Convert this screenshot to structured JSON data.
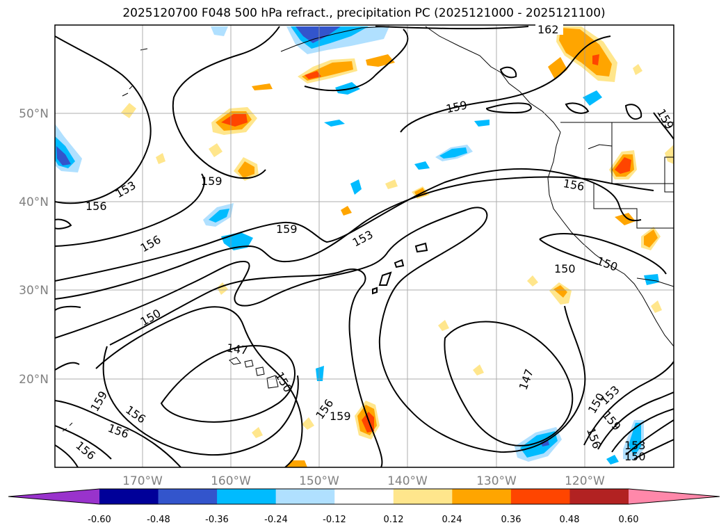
{
  "title": "2025120700 F048 500 hPa refract., precipitation PC (2025121000 - 2025121100)",
  "lat_labels": [
    "50°N",
    "40°N",
    "30°N",
    "20°N"
  ],
  "lon_labels": [
    "170°W",
    "160°W",
    "150°W",
    "140°W",
    "130°W",
    "120°W"
  ],
  "contour_labels": [
    {
      "text": "162"
    },
    {
      "text": "159"
    },
    {
      "text": "159"
    },
    {
      "text": "153"
    },
    {
      "text": "156"
    },
    {
      "text": "159"
    },
    {
      "text": "156"
    },
    {
      "text": "159"
    },
    {
      "text": "153"
    },
    {
      "text": "156"
    },
    {
      "text": "150"
    },
    {
      "text": "150"
    },
    {
      "text": "150"
    },
    {
      "text": "147"
    },
    {
      "text": "150"
    },
    {
      "text": "159"
    },
    {
      "text": "156"
    },
    {
      "text": "156"
    },
    {
      "text": "156"
    },
    {
      "text": "159"
    },
    {
      "text": "156"
    },
    {
      "text": "147"
    },
    {
      "text": "150"
    },
    {
      "text": "153"
    },
    {
      "text": "159"
    },
    {
      "text": "156"
    },
    {
      "text": "153"
    },
    {
      "text": "150"
    }
  ],
  "colorbar": {
    "colors": [
      "#9933cc",
      "#000099",
      "#3355cc",
      "#00bbff",
      "#b0e0ff",
      "#ffffff",
      "#ffe68c",
      "#ffa500",
      "#ff4500",
      "#b22222",
      "#ff88aa"
    ],
    "tick_labels": [
      "-0.60",
      "-0.48",
      "-0.36",
      "-0.24",
      "-0.12",
      "0.12",
      "0.24",
      "0.36",
      "0.48",
      "0.60"
    ]
  }
}
